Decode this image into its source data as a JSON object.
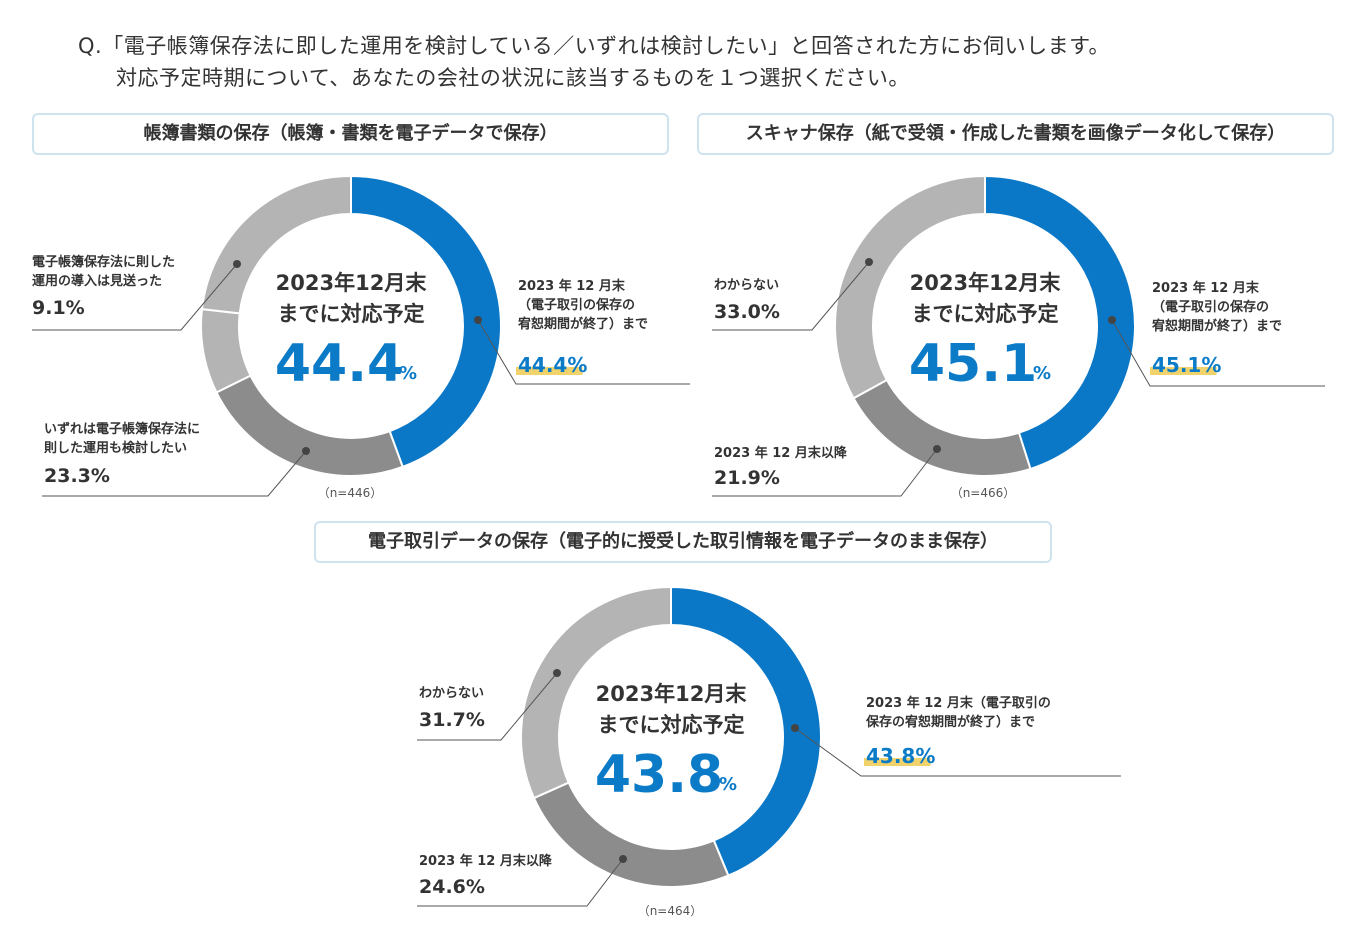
{
  "question": {
    "line1": "Q.「電子帳簿保存法に即した運用を検討している／いずれは検討したい」と回答された方にお伺いします。",
    "line2": "対応予定時期について、あなたの会社の状況に該当するものを１つ選択ください。"
  },
  "colors": {
    "blue": "#0a78c6",
    "gray_light": "#b4b4b4",
    "gray_dark": "#8c8c8c",
    "highlight": "#f2d36b"
  },
  "chart_data": [
    {
      "type": "pie",
      "title": "帳簿書類の保存（帳簿・書類を電子データで保存）",
      "center_line1": "2023年12月末",
      "center_line2": "までに対応予定",
      "center_value": "44.4",
      "center_unit": "%",
      "n_label": "（n=446）",
      "slices": [
        {
          "label_lines": [
            "2023 年 12 月末",
            "（電子取引の保存の",
            "宥恕期間が終了）まで"
          ],
          "value": 44.4,
          "display": "44.4%",
          "color": "blue"
        },
        {
          "label_lines": [
            "いずれは電子帳簿保存法に",
            "則した運用も検討したい"
          ],
          "value": 23.3,
          "display": "23.3%",
          "color": "gray_dark"
        },
        {
          "label_lines": [
            "電子帳簿保存法に則した",
            "運用の導入は見送った"
          ],
          "value": 9.1,
          "display": "9.1%",
          "color": "gray_light"
        },
        {
          "label_lines": [],
          "value": 23.2,
          "display": "",
          "color": "gray_light"
        }
      ]
    },
    {
      "type": "pie",
      "title": "スキャナ保存（紙で受領・作成した書類を画像データ化して保存）",
      "center_line1": "2023年12月末",
      "center_line2": "までに対応予定",
      "center_value": "45.1",
      "center_unit": "%",
      "n_label": "（n=466）",
      "slices": [
        {
          "label_lines": [
            "2023 年 12 月末",
            "（電子取引の保存の",
            "宥恕期間が終了）まで"
          ],
          "value": 45.1,
          "display": "45.1%",
          "color": "blue"
        },
        {
          "label_lines": [
            "2023 年 12 月末以降"
          ],
          "value": 21.9,
          "display": "21.9%",
          "color": "gray_dark"
        },
        {
          "label_lines": [
            "わからない"
          ],
          "value": 33.0,
          "display": "33.0%",
          "color": "gray_light"
        }
      ]
    },
    {
      "type": "pie",
      "title": "電子取引データの保存（電子的に授受した取引情報を電子データのまま保存）",
      "center_line1": "2023年12月末",
      "center_line2": "までに対応予定",
      "center_value": "43.8",
      "center_unit": "%",
      "n_label": "（n=464）",
      "slices": [
        {
          "label_lines": [
            "2023 年 12 月末（電子取引の",
            "保存の宥恕期間が終了）まで"
          ],
          "value": 43.8,
          "display": "43.8%",
          "color": "blue"
        },
        {
          "label_lines": [
            "2023 年 12 月末以降"
          ],
          "value": 24.6,
          "display": "24.6%",
          "color": "gray_dark"
        },
        {
          "label_lines": [
            "わからない"
          ],
          "value": 31.7,
          "display": "31.7%",
          "color": "gray_light"
        }
      ]
    }
  ]
}
